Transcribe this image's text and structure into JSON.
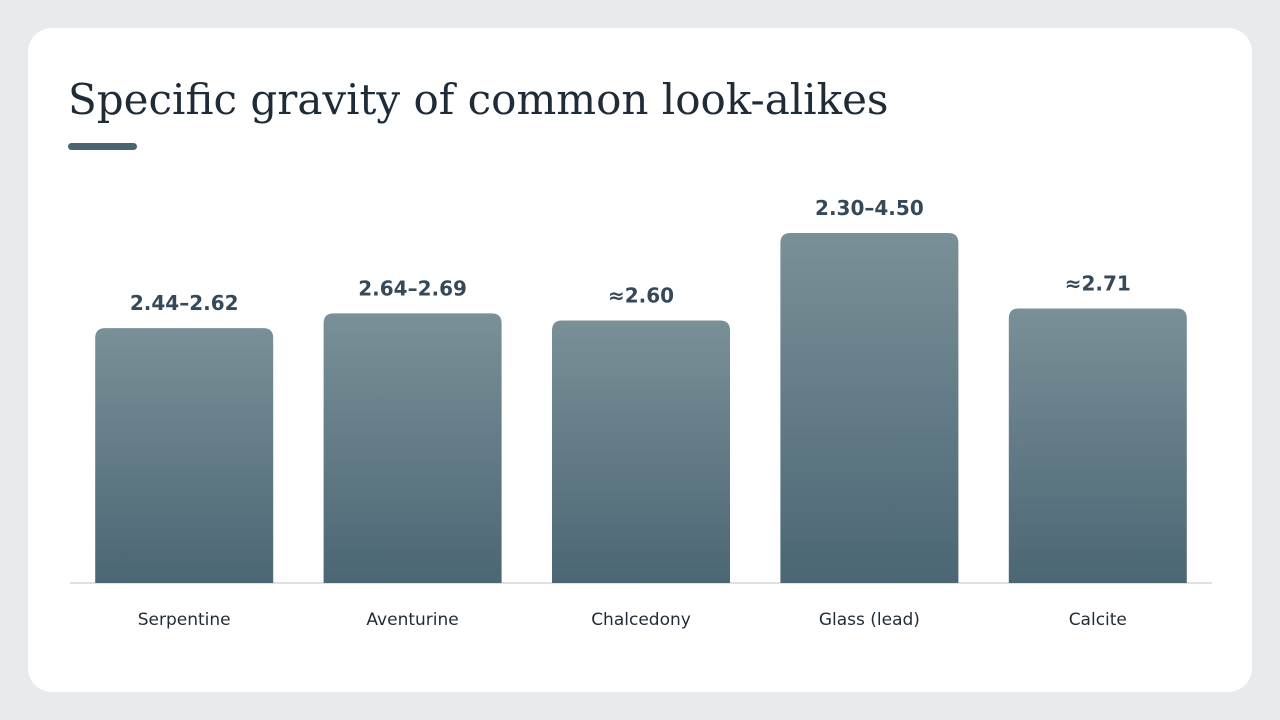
{
  "chart_data": {
    "type": "bar",
    "title": "Specific gravity of common look-alikes",
    "categories": [
      "Serpentine",
      "Aventurine",
      "Chalcedony",
      "Glass (lead)",
      "Calcite"
    ],
    "ranges": [
      [
        2.44,
        2.62
      ],
      [
        2.64,
        2.69
      ],
      [
        2.6,
        2.6
      ],
      [
        2.3,
        4.5
      ],
      [
        2.71,
        2.71
      ]
    ],
    "value_labels": [
      "2.44–2.62",
      "2.64–2.69",
      "≈2.60",
      "2.30–4.50",
      "≈2.71"
    ],
    "ylim": [
      0.2,
      3.4
    ],
    "color": [
      "#7a9098",
      "#4b6674"
    ]
  }
}
